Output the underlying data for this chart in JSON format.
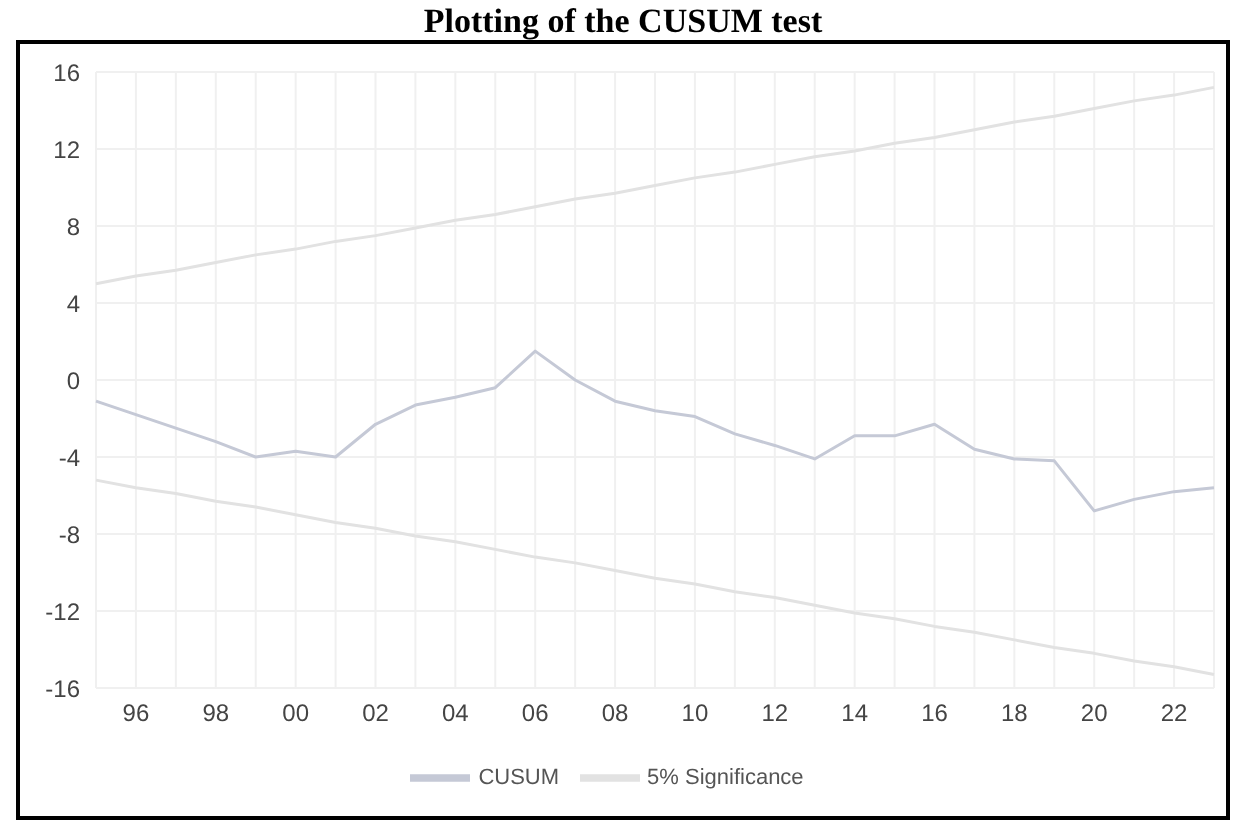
{
  "chart_data": {
    "type": "line",
    "title": "Plotting of the CUSUM test",
    "categories": [
      null,
      "96",
      null,
      "98",
      null,
      "00",
      null,
      "02",
      null,
      "04",
      null,
      "06",
      null,
      "08",
      null,
      "10",
      null,
      "12",
      null,
      "14",
      null,
      "16",
      null,
      "18",
      null,
      "20",
      null,
      "22",
      null
    ],
    "series": [
      {
        "name": "CUSUM",
        "color": "#c5c9d6",
        "values": [
          -1.1,
          -1.8,
          -2.5,
          -3.2,
          -4.0,
          -3.7,
          -4.0,
          -2.3,
          -1.3,
          -0.9,
          -0.4,
          1.5,
          0.0,
          -1.1,
          -1.6,
          -1.9,
          -2.8,
          -3.4,
          -4.1,
          -2.9,
          -2.9,
          -2.3,
          -3.6,
          -4.1,
          -4.2,
          -6.8,
          -6.2,
          -5.8,
          -5.6
        ]
      },
      {
        "name": "5% Significance",
        "color": "#e2e2e2",
        "values": [
          5.0,
          5.4,
          5.7,
          6.1,
          6.5,
          6.8,
          7.2,
          7.5,
          7.9,
          8.3,
          8.6,
          9.0,
          9.4,
          9.7,
          10.1,
          10.5,
          10.8,
          11.2,
          11.6,
          11.9,
          12.3,
          12.6,
          13.0,
          13.4,
          13.7,
          14.1,
          14.5,
          14.8,
          15.2
        ]
      },
      {
        "color": "#e2e2e2",
        "values": [
          -5.2,
          -5.6,
          -5.9,
          -6.3,
          -6.6,
          -7.0,
          -7.4,
          -7.7,
          -8.1,
          -8.4,
          -8.8,
          -9.2,
          -9.5,
          -9.9,
          -10.3,
          -10.6,
          -11.0,
          -11.3,
          -11.7,
          -12.1,
          -12.4,
          -12.8,
          -13.1,
          -13.5,
          -13.9,
          -14.2,
          -14.6,
          -14.9,
          -15.3
        ]
      }
    ],
    "ylim": [
      -16,
      16
    ],
    "yticks": [
      -16,
      -12,
      -8,
      -4,
      0,
      4,
      8,
      12,
      16
    ],
    "grid": true,
    "legend": "bottom",
    "marker": "none",
    "line_style": "solid"
  }
}
